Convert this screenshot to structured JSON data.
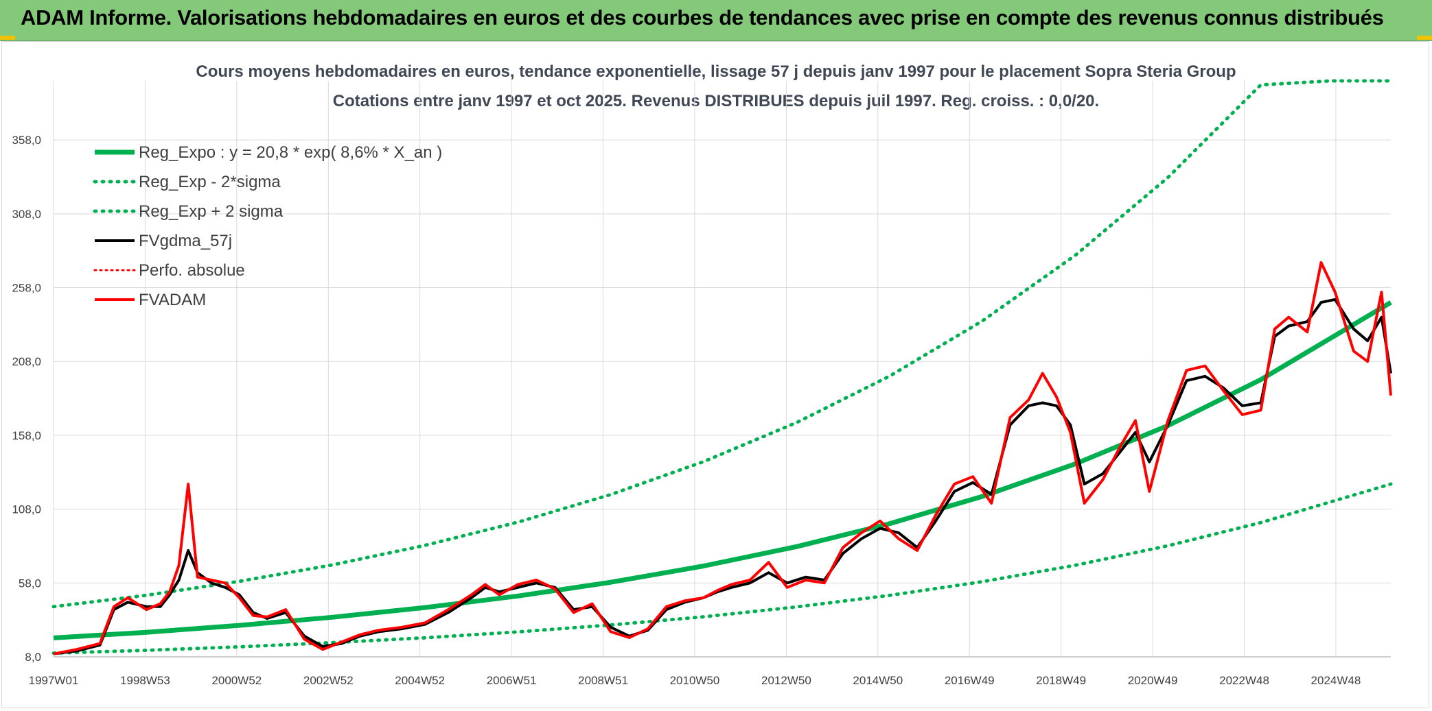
{
  "header": {
    "banner_title": "ADAM Informe. Valorisations hebdomadaires en euros et des courbes de tendances avec prise en compte des revenus connus distribués"
  },
  "colors": {
    "banner_bg": "#84c97a",
    "reg_green": "#00b050",
    "fv_black": "#000000",
    "fvadam_red": "#ff0000",
    "grid": "#d9d9d9"
  },
  "chart_data": {
    "type": "line",
    "title": "Cours moyens hebdomadaires en euros, tendance exponentielle, lissage 57 j depuis janv 1997 pour le placement Sopra Steria Group",
    "subtitle": "Cotations entre janv 1997 et oct 2025. Revenus DISTRIBUES depuis juil 1997. Reg. croiss. : 0,0/20.",
    "x_ticks": [
      "1997W01",
      "1998W53",
      "2000W52",
      "2002W52",
      "2004W52",
      "2006W51",
      "2008W51",
      "2010W50",
      "2012W50",
      "2014W50",
      "2016W49",
      "2018W49",
      "2020W49",
      "2022W48",
      "2024W48"
    ],
    "x_range": [
      1997.0,
      2025.8
    ],
    "y_ticks": [
      "8,0",
      "58,0",
      "108,0",
      "158,0",
      "208,0",
      "258,0",
      "308,0",
      "358,0"
    ],
    "ylim": [
      8,
      398
    ],
    "grid": true,
    "legend_position": "top-left",
    "legend": [
      {
        "key": "reg",
        "label": "Reg_Expo : y = 20,8 * exp( 8,6% *  X_an )"
      },
      {
        "key": "lo",
        "label": "Reg_Exp - 2*sigma"
      },
      {
        "key": "hi",
        "label": "Reg_Exp + 2 sigma"
      },
      {
        "key": "fvg",
        "label": "FVgdma_57j"
      },
      {
        "key": "perfo",
        "label": "Perfo. absolue"
      },
      {
        "key": "fvadam",
        "label": "FVADAM"
      }
    ],
    "series": [
      {
        "key": "reg",
        "name": "Reg_Expo : y = 20,8 * exp( 8,6% *  X_an )",
        "x": [
          1997.0,
          1999.0,
          2001.0,
          2003.0,
          2005.0,
          2007.0,
          2009.0,
          2011.0,
          2013.0,
          2015.0,
          2017.0,
          2019.0,
          2021.0,
          2023.0,
          2025.8
        ],
        "y": [
          20.8,
          24.6,
          29.3,
          34.8,
          41.4,
          49.2,
          58.5,
          69.5,
          82.6,
          98.1,
          116.6,
          138.6,
          164.6,
          195.7,
          248.0
        ]
      },
      {
        "key": "lo",
        "name": "Reg_Exp - 2*sigma",
        "x": [
          1997.0,
          1999.0,
          2001.0,
          2003.0,
          2005.0,
          2007.0,
          2009.0,
          2011.0,
          2013.0,
          2015.0,
          2017.0,
          2019.0,
          2021.0,
          2023.0,
          2025.8
        ],
        "y": [
          10.5,
          12.4,
          14.8,
          17.6,
          20.9,
          24.9,
          29.6,
          35.1,
          41.8,
          49.6,
          58.9,
          70.0,
          83.2,
          98.9,
          125.0
        ]
      },
      {
        "key": "hi",
        "name": "Reg_Exp + 2 sigma",
        "x": [
          1997.0,
          1999.0,
          2001.0,
          2003.0,
          2005.0,
          2007.0,
          2009.0,
          2011.0,
          2013.0,
          2015.0,
          2017.0,
          2019.0,
          2021.0,
          2023.0,
          2024.5,
          2025.8
        ],
        "y": [
          42.0,
          49.7,
          59.1,
          70.2,
          83.5,
          99.2,
          117.9,
          140.2,
          166.6,
          198.0,
          235.4,
          279.8,
          332.6,
          395.3,
          398.0,
          398.0
        ]
      },
      {
        "key": "fvg",
        "name": "FVgdma_57j",
        "x": [
          1997.0,
          1997.5,
          1998.0,
          1998.3,
          1998.6,
          1999.0,
          1999.3,
          1999.5,
          1999.7,
          1999.9,
          2000.1,
          2000.4,
          2000.7,
          2001.0,
          2001.3,
          2001.6,
          2002.0,
          2002.4,
          2002.8,
          2003.2,
          2003.6,
          2004.0,
          2004.5,
          2005.0,
          2005.5,
          2006.0,
          2006.3,
          2006.6,
          2007.0,
          2007.4,
          2007.8,
          2008.2,
          2008.6,
          2009.0,
          2009.4,
          2009.8,
          2010.2,
          2010.6,
          2011.0,
          2011.3,
          2011.6,
          2012.0,
          2012.4,
          2012.8,
          2013.2,
          2013.6,
          2014.0,
          2014.4,
          2014.8,
          2015.2,
          2015.6,
          2016.0,
          2016.4,
          2016.8,
          2017.2,
          2017.6,
          2018.0,
          2018.3,
          2018.6,
          2018.9,
          2019.2,
          2019.6,
          2020.0,
          2020.3,
          2020.6,
          2021.0,
          2021.4,
          2021.8,
          2022.2,
          2022.6,
          2023.0,
          2023.3,
          2023.6,
          2024.0,
          2024.3,
          2024.6,
          2025.0,
          2025.3,
          2025.6,
          2025.8
        ],
        "y": [
          10,
          12,
          16,
          40,
          45,
          42,
          42,
          50,
          60,
          80,
          65,
          58,
          55,
          50,
          38,
          34,
          38,
          22,
          15,
          17,
          22,
          25,
          27,
          30,
          38,
          48,
          55,
          52,
          55,
          58,
          55,
          40,
          42,
          28,
          22,
          26,
          40,
          45,
          48,
          52,
          55,
          58,
          65,
          58,
          62,
          60,
          78,
          88,
          95,
          92,
          82,
          100,
          120,
          126,
          118,
          165,
          178,
          180,
          178,
          165,
          125,
          132,
          148,
          160,
          140,
          165,
          195,
          198,
          190,
          178,
          180,
          225,
          232,
          235,
          248,
          250,
          230,
          222,
          238,
          200
        ]
      },
      {
        "key": "fvadam",
        "name": "FVADAM",
        "x": [
          1997.0,
          1997.5,
          1998.0,
          1998.3,
          1998.6,
          1999.0,
          1999.3,
          1999.5,
          1999.7,
          1999.9,
          2000.1,
          2000.4,
          2000.7,
          2001.0,
          2001.3,
          2001.6,
          2002.0,
          2002.4,
          2002.8,
          2003.2,
          2003.6,
          2004.0,
          2004.5,
          2005.0,
          2005.5,
          2006.0,
          2006.3,
          2006.6,
          2007.0,
          2007.4,
          2007.8,
          2008.2,
          2008.6,
          2009.0,
          2009.4,
          2009.8,
          2010.2,
          2010.6,
          2011.0,
          2011.3,
          2011.6,
          2012.0,
          2012.4,
          2012.8,
          2013.2,
          2013.6,
          2014.0,
          2014.4,
          2014.8,
          2015.2,
          2015.6,
          2016.0,
          2016.4,
          2016.8,
          2017.2,
          2017.6,
          2018.0,
          2018.3,
          2018.6,
          2018.9,
          2019.2,
          2019.6,
          2020.0,
          2020.3,
          2020.6,
          2021.0,
          2021.4,
          2021.8,
          2022.2,
          2022.6,
          2023.0,
          2023.3,
          2023.6,
          2024.0,
          2024.3,
          2024.6,
          2025.0,
          2025.3,
          2025.6,
          2025.8
        ],
        "y": [
          10,
          13,
          17,
          42,
          48,
          40,
          44,
          52,
          70,
          125,
          62,
          60,
          58,
          48,
          36,
          35,
          40,
          20,
          13,
          18,
          23,
          26,
          28,
          31,
          40,
          50,
          57,
          50,
          57,
          60,
          54,
          38,
          44,
          25,
          21,
          27,
          42,
          46,
          48,
          53,
          57,
          60,
          72,
          55,
          60,
          58,
          82,
          92,
          100,
          88,
          80,
          104,
          125,
          130,
          112,
          170,
          182,
          200,
          184,
          160,
          112,
          128,
          152,
          168,
          120,
          168,
          202,
          205,
          188,
          172,
          175,
          230,
          238,
          228,
          275,
          255,
          215,
          208,
          255,
          185
        ]
      }
    ]
  }
}
